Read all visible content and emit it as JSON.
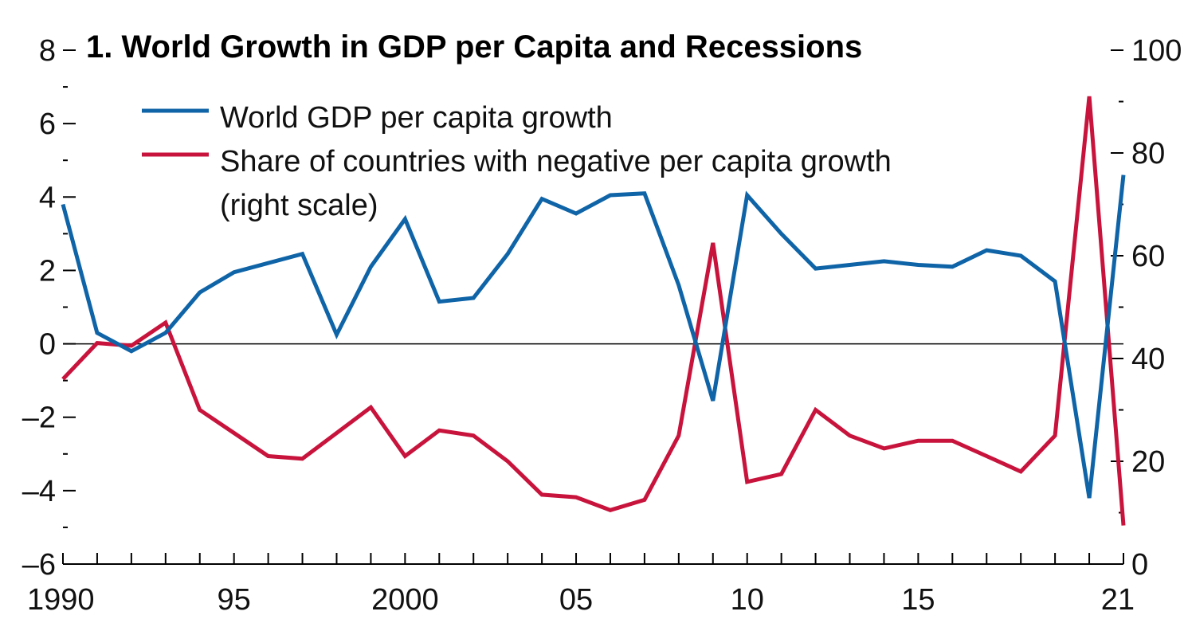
{
  "chart_data": {
    "type": "line",
    "title": "1. World Growth in GDP per Capita and Recessions",
    "x": [
      1990,
      1991,
      1992,
      1993,
      1994,
      1995,
      1996,
      1997,
      1998,
      1999,
      2000,
      2001,
      2002,
      2003,
      2004,
      2005,
      2006,
      2007,
      2008,
      2009,
      2010,
      2011,
      2012,
      2013,
      2014,
      2015,
      2016,
      2017,
      2018,
      2019,
      2020,
      2021
    ],
    "x_tick_values": [
      1990,
      1995,
      2000,
      2005,
      2010,
      2015,
      2021
    ],
    "x_tick_labels": [
      "1990",
      "95",
      "2000",
      "05",
      "10",
      "15",
      "21"
    ],
    "y_left": {
      "range": [
        -6,
        8
      ],
      "ticks": [
        -6,
        -4,
        -2,
        0,
        2,
        4,
        6,
        8
      ],
      "tick_labels": [
        "–6",
        "–4",
        "–2",
        "0",
        "2",
        "4",
        "6",
        "8"
      ]
    },
    "y_right": {
      "range": [
        0,
        100
      ],
      "ticks": [
        0,
        20,
        40,
        60,
        80,
        100
      ],
      "tick_labels": [
        "0",
        "20",
        "40",
        "60",
        "80",
        "100"
      ]
    },
    "legend": {
      "placement": "top-left",
      "entries": [
        {
          "lines": [
            "World GDP per capita growth"
          ]
        },
        {
          "lines": [
            "Share of countries with negative per capita growth",
            "(right scale)"
          ]
        }
      ]
    },
    "series": [
      {
        "name": "World GDP per capita growth",
        "axis": "left",
        "color": "#0f64a8",
        "values": [
          3.8,
          0.3,
          -0.2,
          0.3,
          1.4,
          1.95,
          2.2,
          2.45,
          0.25,
          2.1,
          3.4,
          1.15,
          1.25,
          2.45,
          3.95,
          3.55,
          4.05,
          4.1,
          1.6,
          -1.55,
          4.05,
          3.0,
          2.05,
          2.15,
          2.25,
          2.15,
          2.1,
          2.55,
          2.4,
          1.7,
          -4.2,
          4.6
        ]
      },
      {
        "name": "Share of countries with negative per capita growth (right scale)",
        "axis": "right",
        "color": "#c8143c",
        "values": [
          36,
          43,
          42.5,
          47,
          30,
          25.5,
          21,
          20.5,
          25.5,
          30.5,
          21,
          26,
          25,
          20,
          13.5,
          13,
          10.5,
          12.5,
          25,
          62.5,
          16,
          17.5,
          30,
          25,
          22.5,
          24,
          24,
          21,
          18,
          25,
          91,
          7.5
        ]
      }
    ],
    "zero_line": true,
    "grid": false
  }
}
